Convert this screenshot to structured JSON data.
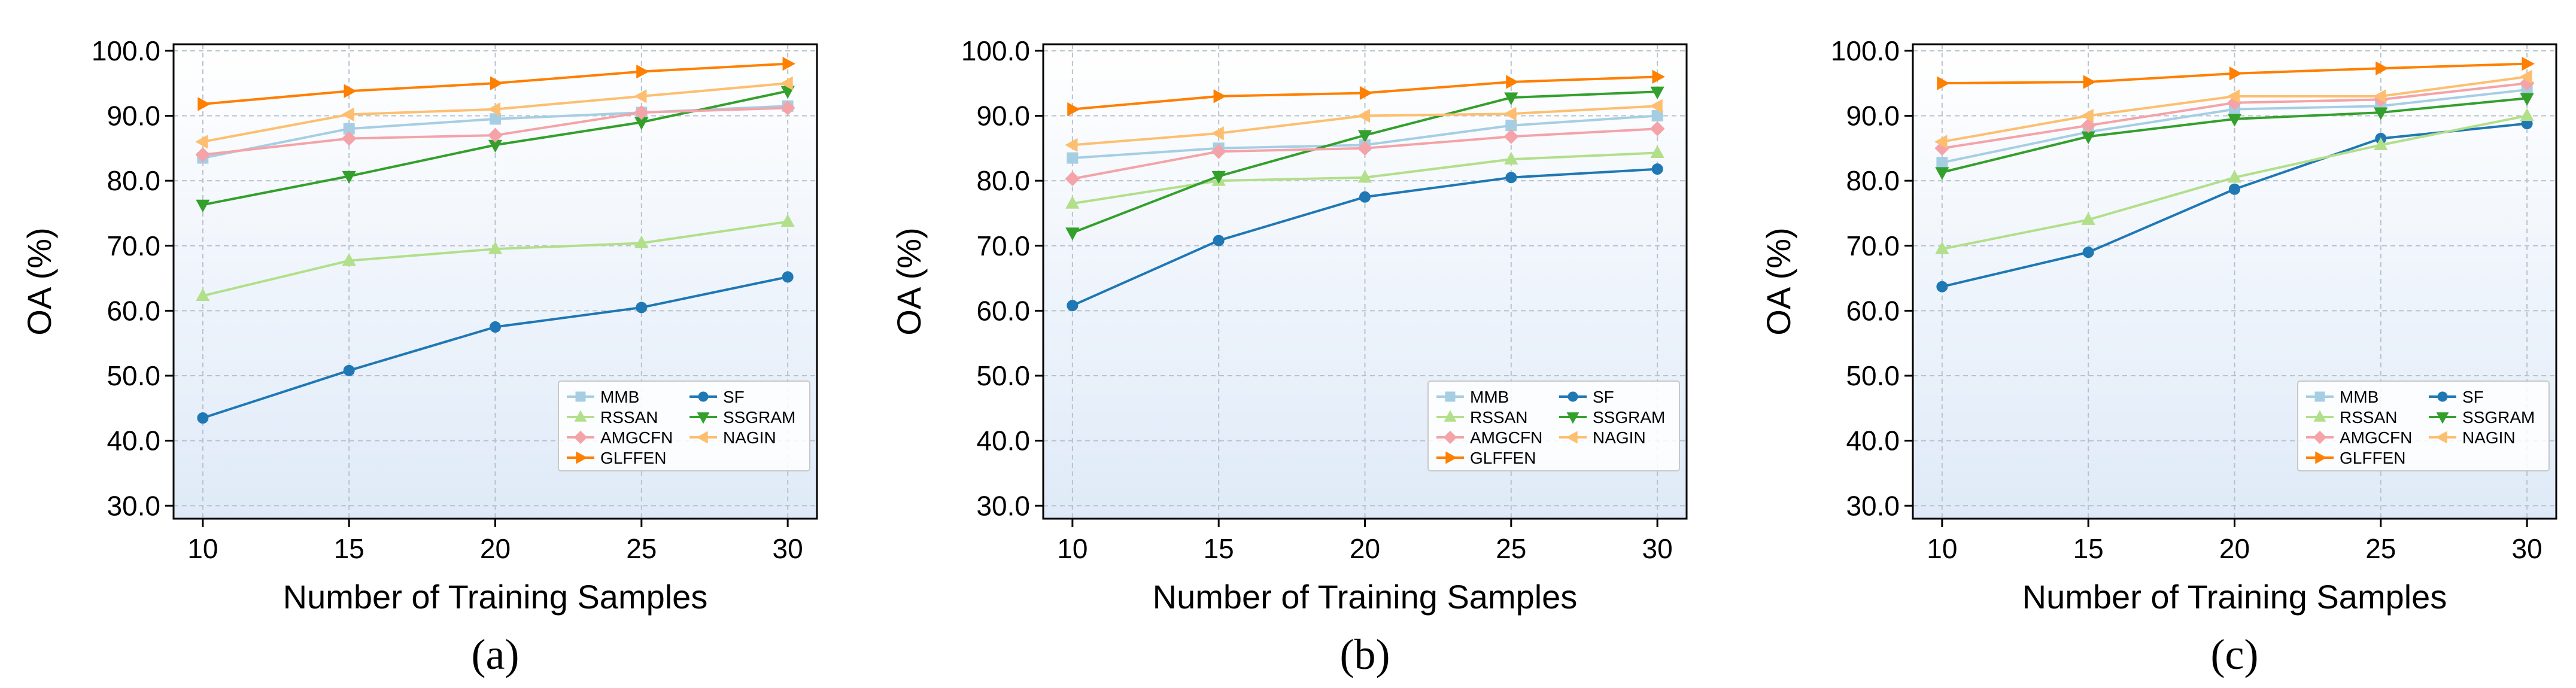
{
  "chart_data": [
    {
      "type": "line",
      "panel_label": "(a)",
      "xlabel": "Number of Training Samples",
      "ylabel": "OA (%)",
      "x": [
        10,
        15,
        20,
        25,
        30
      ],
      "x_ticks": [
        "10",
        "15",
        "20",
        "25",
        "30"
      ],
      "ylim": [
        28,
        101
      ],
      "y_ticks": [
        "30.0",
        "40.0",
        "50.0",
        "60.0",
        "70.0",
        "80.0",
        "90.0",
        "100.0"
      ],
      "grid": true,
      "legend_position": "lower-right",
      "series": [
        {
          "name": "MMB",
          "color": "#a6cee3",
          "marker": "square",
          "values": [
            83.5,
            88.0,
            89.5,
            90.5,
            91.5
          ]
        },
        {
          "name": "SF",
          "color": "#1f78b4",
          "marker": "circle",
          "values": [
            43.5,
            50.8,
            57.5,
            60.5,
            65.2
          ]
        },
        {
          "name": "RSSAN",
          "color": "#b2df8a",
          "marker": "triangle-up",
          "values": [
            62.3,
            67.7,
            69.5,
            70.4,
            73.7
          ]
        },
        {
          "name": "SSGRAM",
          "color": "#33a02c",
          "marker": "triangle-down",
          "values": [
            76.3,
            80.7,
            85.5,
            89.0,
            93.8
          ]
        },
        {
          "name": "AMGCFN",
          "color": "#f4a3a8",
          "marker": "diamond",
          "values": [
            84.0,
            86.5,
            87.0,
            90.5,
            91.2
          ]
        },
        {
          "name": "NAGIN",
          "color": "#fdbf6f",
          "marker": "triangle-left",
          "values": [
            86.0,
            90.2,
            91.0,
            93.0,
            95.0
          ]
        },
        {
          "name": "GLFFEN",
          "color": "#ff7f00",
          "marker": "triangle-right",
          "values": [
            91.8,
            93.8,
            95.0,
            96.8,
            98.0
          ]
        }
      ]
    },
    {
      "type": "line",
      "panel_label": "(b)",
      "xlabel": "Number of Training Samples",
      "ylabel": "OA (%)",
      "x": [
        10,
        15,
        20,
        25,
        30
      ],
      "x_ticks": [
        "10",
        "15",
        "20",
        "25",
        "30"
      ],
      "ylim": [
        28,
        101
      ],
      "y_ticks": [
        "30.0",
        "40.0",
        "50.0",
        "60.0",
        "70.0",
        "80.0",
        "90.0",
        "100.0"
      ],
      "grid": true,
      "legend_position": "lower-right",
      "series": [
        {
          "name": "MMB",
          "color": "#a6cee3",
          "marker": "square",
          "values": [
            83.5,
            85.0,
            85.5,
            88.5,
            90.0
          ]
        },
        {
          "name": "SF",
          "color": "#1f78b4",
          "marker": "circle",
          "values": [
            60.8,
            70.8,
            77.5,
            80.5,
            81.8
          ]
        },
        {
          "name": "RSSAN",
          "color": "#b2df8a",
          "marker": "triangle-up",
          "values": [
            76.5,
            80.0,
            80.5,
            83.3,
            84.3
          ]
        },
        {
          "name": "SSGRAM",
          "color": "#33a02c",
          "marker": "triangle-down",
          "values": [
            72.0,
            80.7,
            87.0,
            92.8,
            93.7
          ]
        },
        {
          "name": "AMGCFN",
          "color": "#f4a3a8",
          "marker": "diamond",
          "values": [
            80.3,
            84.5,
            85.0,
            86.8,
            88.0
          ]
        },
        {
          "name": "NAGIN",
          "color": "#fdbf6f",
          "marker": "triangle-left",
          "values": [
            85.5,
            87.3,
            90.0,
            90.3,
            91.5
          ]
        },
        {
          "name": "GLFFEN",
          "color": "#ff7f00",
          "marker": "triangle-right",
          "values": [
            91.0,
            93.0,
            93.5,
            95.2,
            96.0
          ]
        }
      ]
    },
    {
      "type": "line",
      "panel_label": "(c)",
      "xlabel": "Number of Training Samples",
      "ylabel": "OA (%)",
      "x": [
        10,
        15,
        20,
        25,
        30
      ],
      "x_ticks": [
        "10",
        "15",
        "20",
        "25",
        "30"
      ],
      "ylim": [
        28,
        101
      ],
      "y_ticks": [
        "30.0",
        "40.0",
        "50.0",
        "60.0",
        "70.0",
        "80.0",
        "90.0",
        "100.0"
      ],
      "grid": true,
      "legend_position": "lower-right",
      "series": [
        {
          "name": "MMB",
          "color": "#a6cee3",
          "marker": "square",
          "values": [
            82.8,
            87.5,
            91.0,
            91.5,
            94.0
          ]
        },
        {
          "name": "SF",
          "color": "#1f78b4",
          "marker": "circle",
          "values": [
            63.7,
            69.0,
            78.7,
            86.5,
            88.8
          ]
        },
        {
          "name": "RSSAN",
          "color": "#b2df8a",
          "marker": "triangle-up",
          "values": [
            69.5,
            74.0,
            80.5,
            85.5,
            90.0
          ]
        },
        {
          "name": "SSGRAM",
          "color": "#33a02c",
          "marker": "triangle-down",
          "values": [
            81.3,
            86.8,
            89.5,
            90.5,
            92.7
          ]
        },
        {
          "name": "AMGCFN",
          "color": "#f4a3a8",
          "marker": "diamond",
          "values": [
            85.0,
            88.5,
            92.0,
            92.5,
            95.0
          ]
        },
        {
          "name": "NAGIN",
          "color": "#fdbf6f",
          "marker": "triangle-left",
          "values": [
            86.0,
            90.0,
            93.0,
            93.0,
            96.0
          ]
        },
        {
          "name": "GLFFEN",
          "color": "#ff7f00",
          "marker": "triangle-right",
          "values": [
            95.0,
            95.2,
            96.5,
            97.3,
            98.0
          ]
        }
      ]
    }
  ]
}
